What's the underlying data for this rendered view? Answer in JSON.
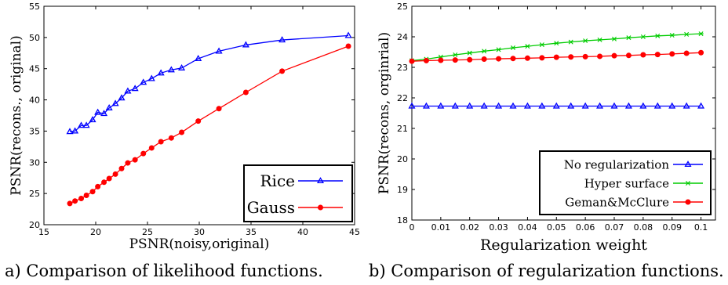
{
  "captions": {
    "left": "a) Comparison of likelihood functions.",
    "right": "b) Comparison of regularization functions."
  },
  "chart_data": [
    {
      "type": "line",
      "xlabel": "PSNR(noisy,original)",
      "ylabel": "PSNR(recons., original)",
      "xlim": [
        15,
        45
      ],
      "ylim": [
        20,
        55
      ],
      "xticks": [
        "15",
        "20",
        "25",
        "30",
        "35",
        "40",
        "45"
      ],
      "yticks": [
        "20",
        "25",
        "30",
        "35",
        "40",
        "45",
        "50",
        "55"
      ],
      "grid": false,
      "legend_position": "bottom-right",
      "series": [
        {
          "name": "Rice",
          "color": "#0000ff",
          "marker": "triangle",
          "x": [
            17.5,
            18.0,
            18.6,
            19.1,
            19.7,
            20.2,
            20.8,
            21.3,
            21.9,
            22.5,
            23.1,
            23.8,
            24.6,
            25.4,
            26.3,
            27.3,
            28.3,
            29.9,
            31.9,
            34.5,
            38.0,
            44.4
          ],
          "y": [
            34.9,
            35.0,
            35.9,
            35.9,
            36.8,
            38.0,
            37.8,
            38.7,
            39.4,
            40.3,
            41.4,
            41.8,
            42.8,
            43.4,
            44.3,
            44.8,
            45.1,
            46.6,
            47.8,
            48.8,
            49.6,
            50.3
          ]
        },
        {
          "name": "Gauss",
          "color": "#ff0000",
          "marker": "circle",
          "x": [
            17.5,
            18.0,
            18.6,
            19.1,
            19.7,
            20.2,
            20.8,
            21.3,
            21.9,
            22.5,
            23.1,
            23.8,
            24.6,
            25.4,
            26.3,
            27.3,
            28.3,
            29.9,
            31.9,
            34.5,
            38.0,
            44.4
          ],
          "y": [
            23.4,
            23.8,
            24.2,
            24.7,
            25.3,
            26.1,
            26.8,
            27.4,
            28.1,
            29.0,
            29.9,
            30.4,
            31.4,
            32.3,
            33.3,
            33.9,
            34.8,
            36.6,
            38.6,
            41.2,
            44.6,
            48.6
          ]
        }
      ]
    },
    {
      "type": "line",
      "xlabel": "Regularization weight",
      "ylabel": "PSNR(recons, orginrial)",
      "xlim": [
        0,
        0.105
      ],
      "ylim": [
        18,
        25
      ],
      "xticks": [
        "0",
        "0.01",
        "0.02",
        "0.03",
        "0.04",
        "0.05",
        "0.06",
        "0.07",
        "0.08",
        "0.09",
        "0.1"
      ],
      "yticks": [
        "18",
        "19",
        "20",
        "21",
        "22",
        "23",
        "24",
        "25"
      ],
      "grid": false,
      "legend_position": "bottom-right",
      "x": [
        0,
        0.005,
        0.01,
        0.015,
        0.02,
        0.025,
        0.03,
        0.035,
        0.04,
        0.045,
        0.05,
        0.055,
        0.06,
        0.065,
        0.07,
        0.075,
        0.08,
        0.085,
        0.09,
        0.095,
        0.1
      ],
      "series": [
        {
          "name": "No regularization",
          "color": "#0000ff",
          "marker": "triangle",
          "y": [
            21.73,
            21.73,
            21.73,
            21.73,
            21.73,
            21.73,
            21.73,
            21.73,
            21.73,
            21.73,
            21.73,
            21.73,
            21.73,
            21.73,
            21.73,
            21.73,
            21.73,
            21.73,
            21.73,
            21.73,
            21.73
          ]
        },
        {
          "name": "Hyper surface",
          "color": "#00cc00",
          "marker": "x",
          "y": [
            23.22,
            23.27,
            23.34,
            23.41,
            23.47,
            23.53,
            23.58,
            23.64,
            23.69,
            23.74,
            23.79,
            23.83,
            23.87,
            23.9,
            23.93,
            23.97,
            24.0,
            24.03,
            24.05,
            24.08,
            24.1
          ]
        },
        {
          "name": "Geman&McClure",
          "color": "#ff0000",
          "marker": "circle",
          "y": [
            23.2,
            23.22,
            23.23,
            23.24,
            23.25,
            23.27,
            23.28,
            23.29,
            23.3,
            23.31,
            23.33,
            23.34,
            23.35,
            23.36,
            23.38,
            23.39,
            23.41,
            23.42,
            23.44,
            23.46,
            23.48
          ]
        }
      ]
    }
  ]
}
